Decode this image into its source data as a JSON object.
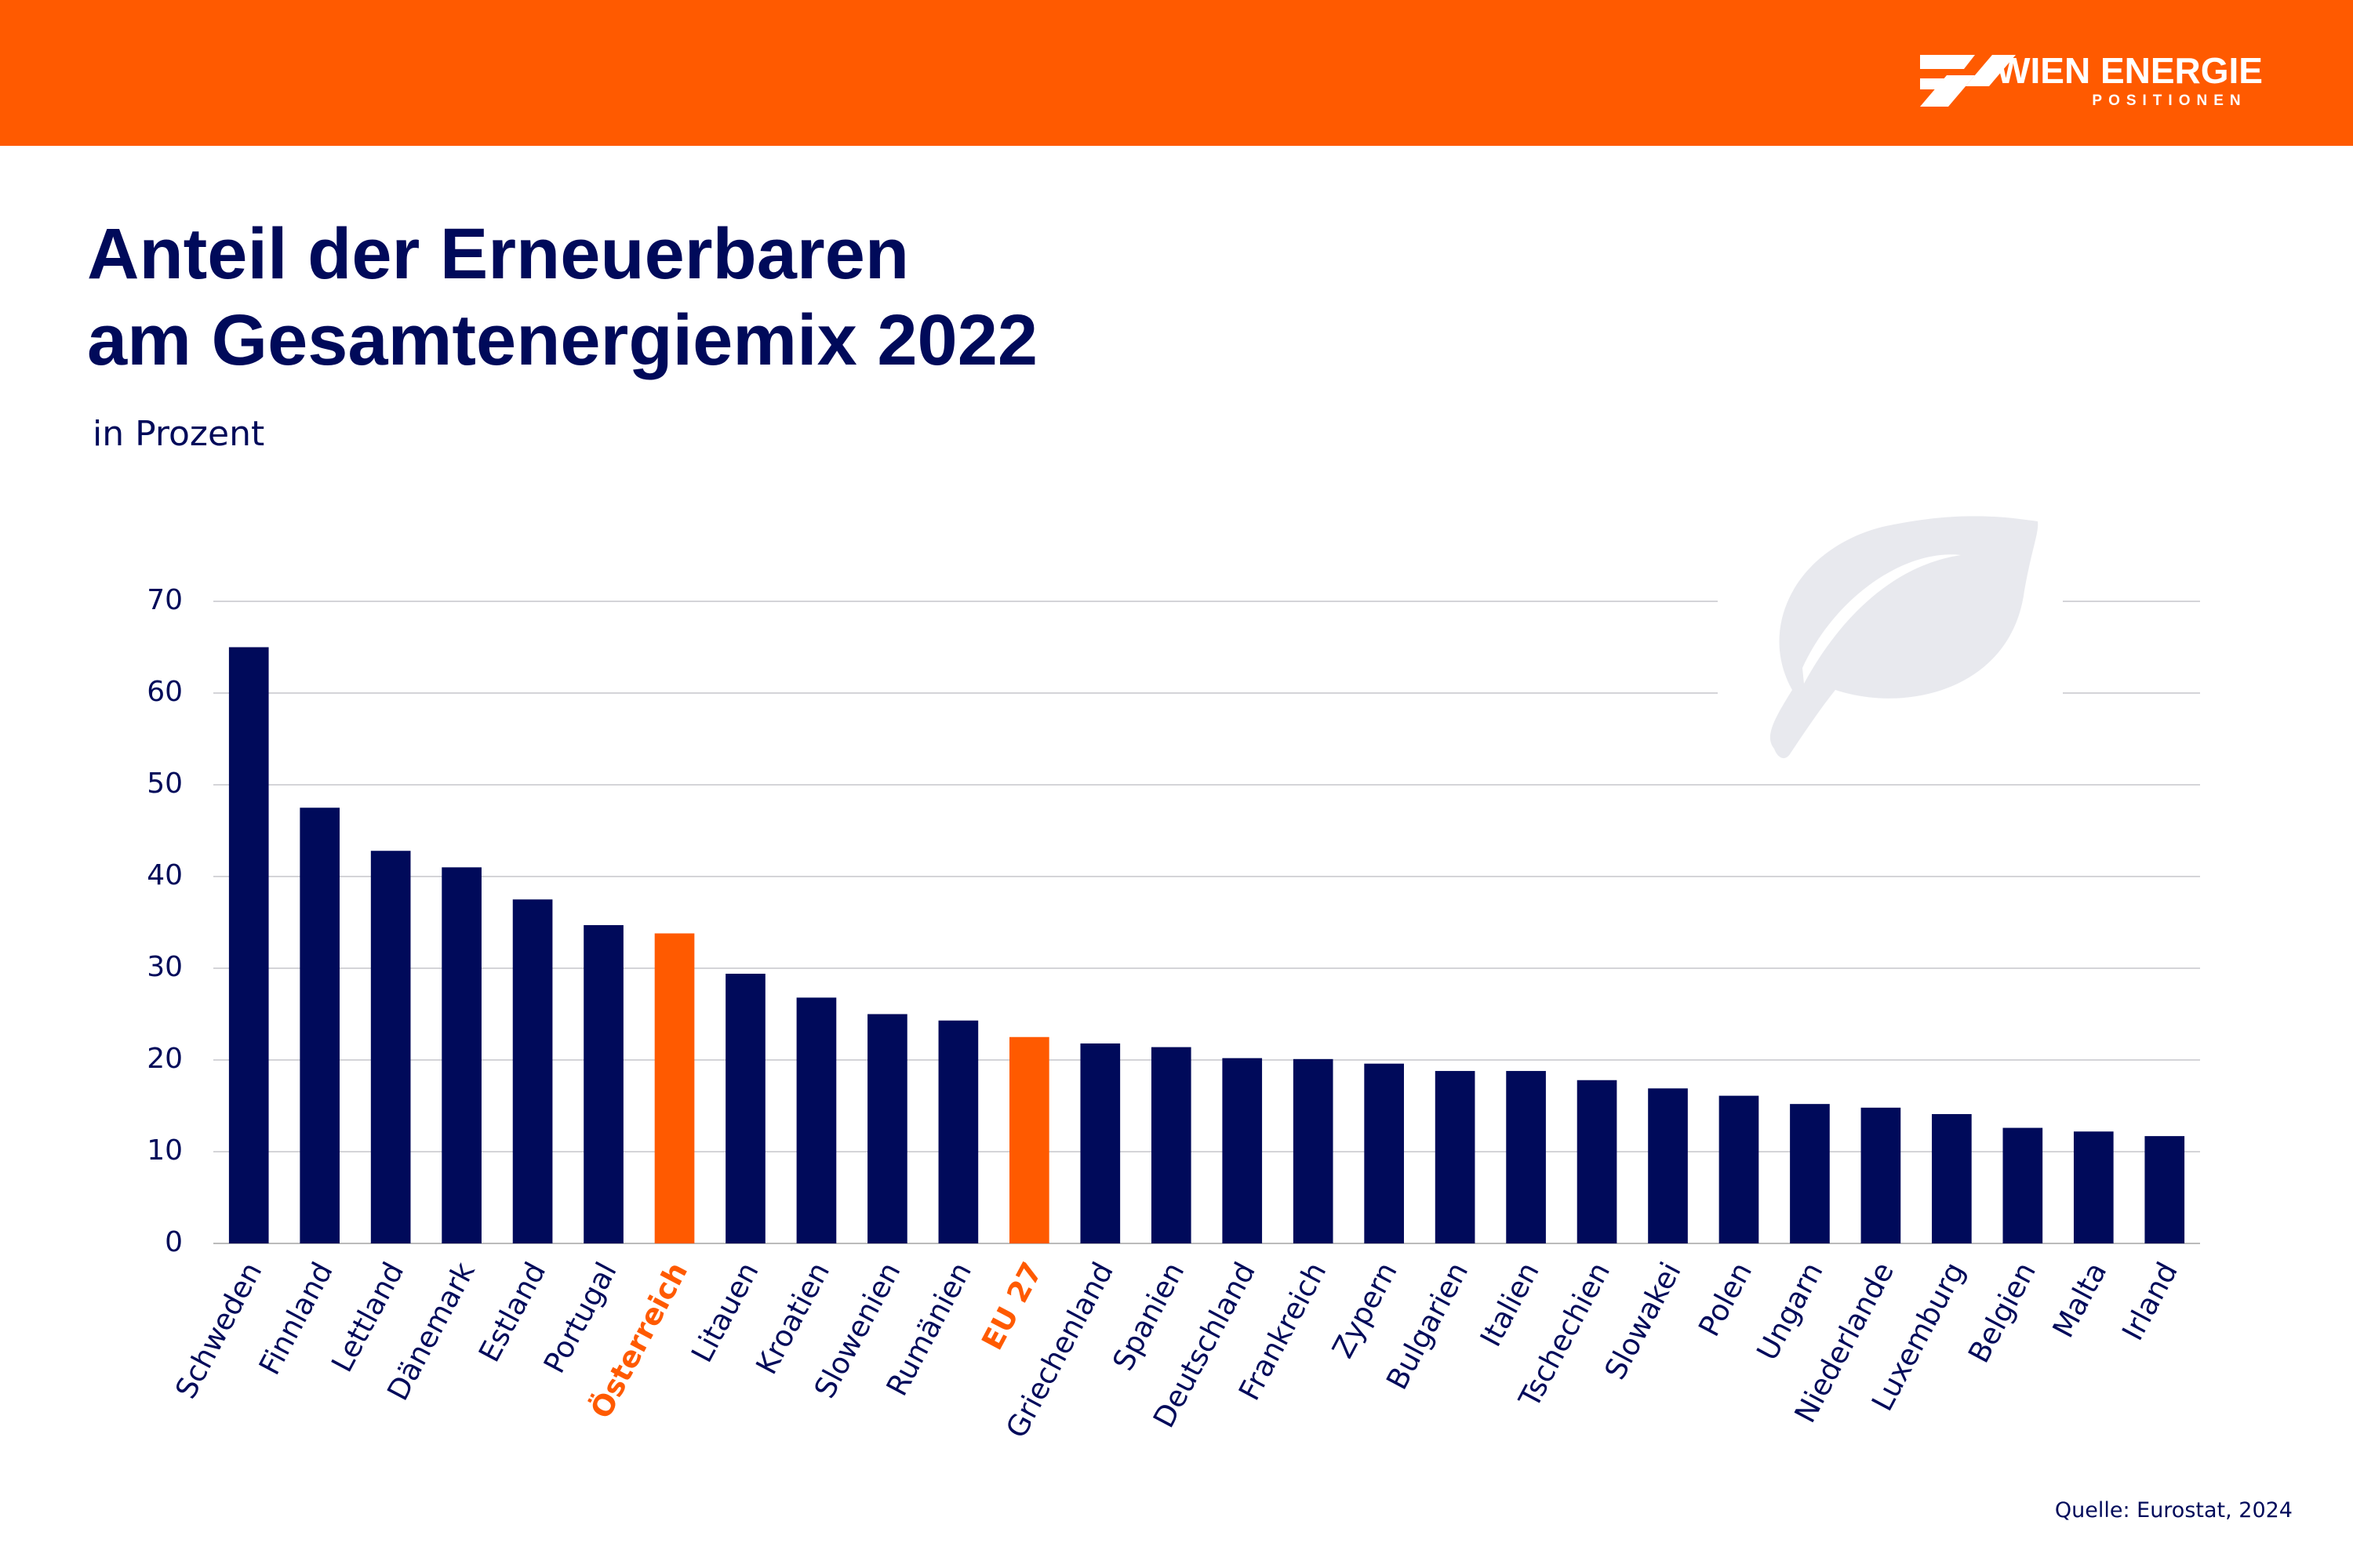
{
  "brand": {
    "name": "WIEN ENERGIE",
    "tagline": "POSITIONEN"
  },
  "chart_data": {
    "type": "bar",
    "title": [
      "Anteil der Erneuerbaren",
      "am Gesamtenergiemix 2022"
    ],
    "subtitle": "in Prozent",
    "source": "Quelle: Eurostat, 2024",
    "categories": [
      "Schweden",
      "Finnland",
      "Lettland",
      "Dänemark",
      "Estland",
      "Portugal",
      "Österreich",
      "Litauen",
      "Kroatien",
      "Slowenien",
      "Rumänien",
      "EU 27",
      "Griechenland",
      "Spanien",
      "Deutschland",
      "Frankreich",
      "Zypern",
      "Bulgarien",
      "Italien",
      "Tschechien",
      "Slowakei",
      "Polen",
      "Ungarn",
      "Niederlande",
      "Luxemburg",
      "Belgien",
      "Malta",
      "Irland"
    ],
    "values": [
      65,
      47.5,
      42.8,
      41,
      37.5,
      34.7,
      33.8,
      29.4,
      26.8,
      25,
      24.3,
      22.5,
      21.8,
      21.4,
      20.2,
      20.1,
      19.6,
      18.8,
      18.8,
      17.8,
      16.9,
      16.1,
      15.2,
      14.8,
      14.1,
      12.6,
      12.2,
      11.7
    ],
    "colors": [
      "#000a5a",
      "#000a5a",
      "#000a5a",
      "#000a5a",
      "#000a5a",
      "#000a5a",
      "#ff5a00",
      "#000a5a",
      "#000a5a",
      "#000a5a",
      "#000a5a",
      "#ff5a00",
      "#000a5a",
      "#000a5a",
      "#000a5a",
      "#000a5a",
      "#000a5a",
      "#000a5a",
      "#000a5a",
      "#000a5a",
      "#000a5a",
      "#000a5a",
      "#000a5a",
      "#000a5a",
      "#000a5a",
      "#000a5a",
      "#000a5a",
      "#000a5a"
    ],
    "ylim": [
      0,
      70
    ],
    "yticks": [
      0,
      10,
      20,
      30,
      40,
      50,
      60,
      70
    ],
    "grid": true
  }
}
